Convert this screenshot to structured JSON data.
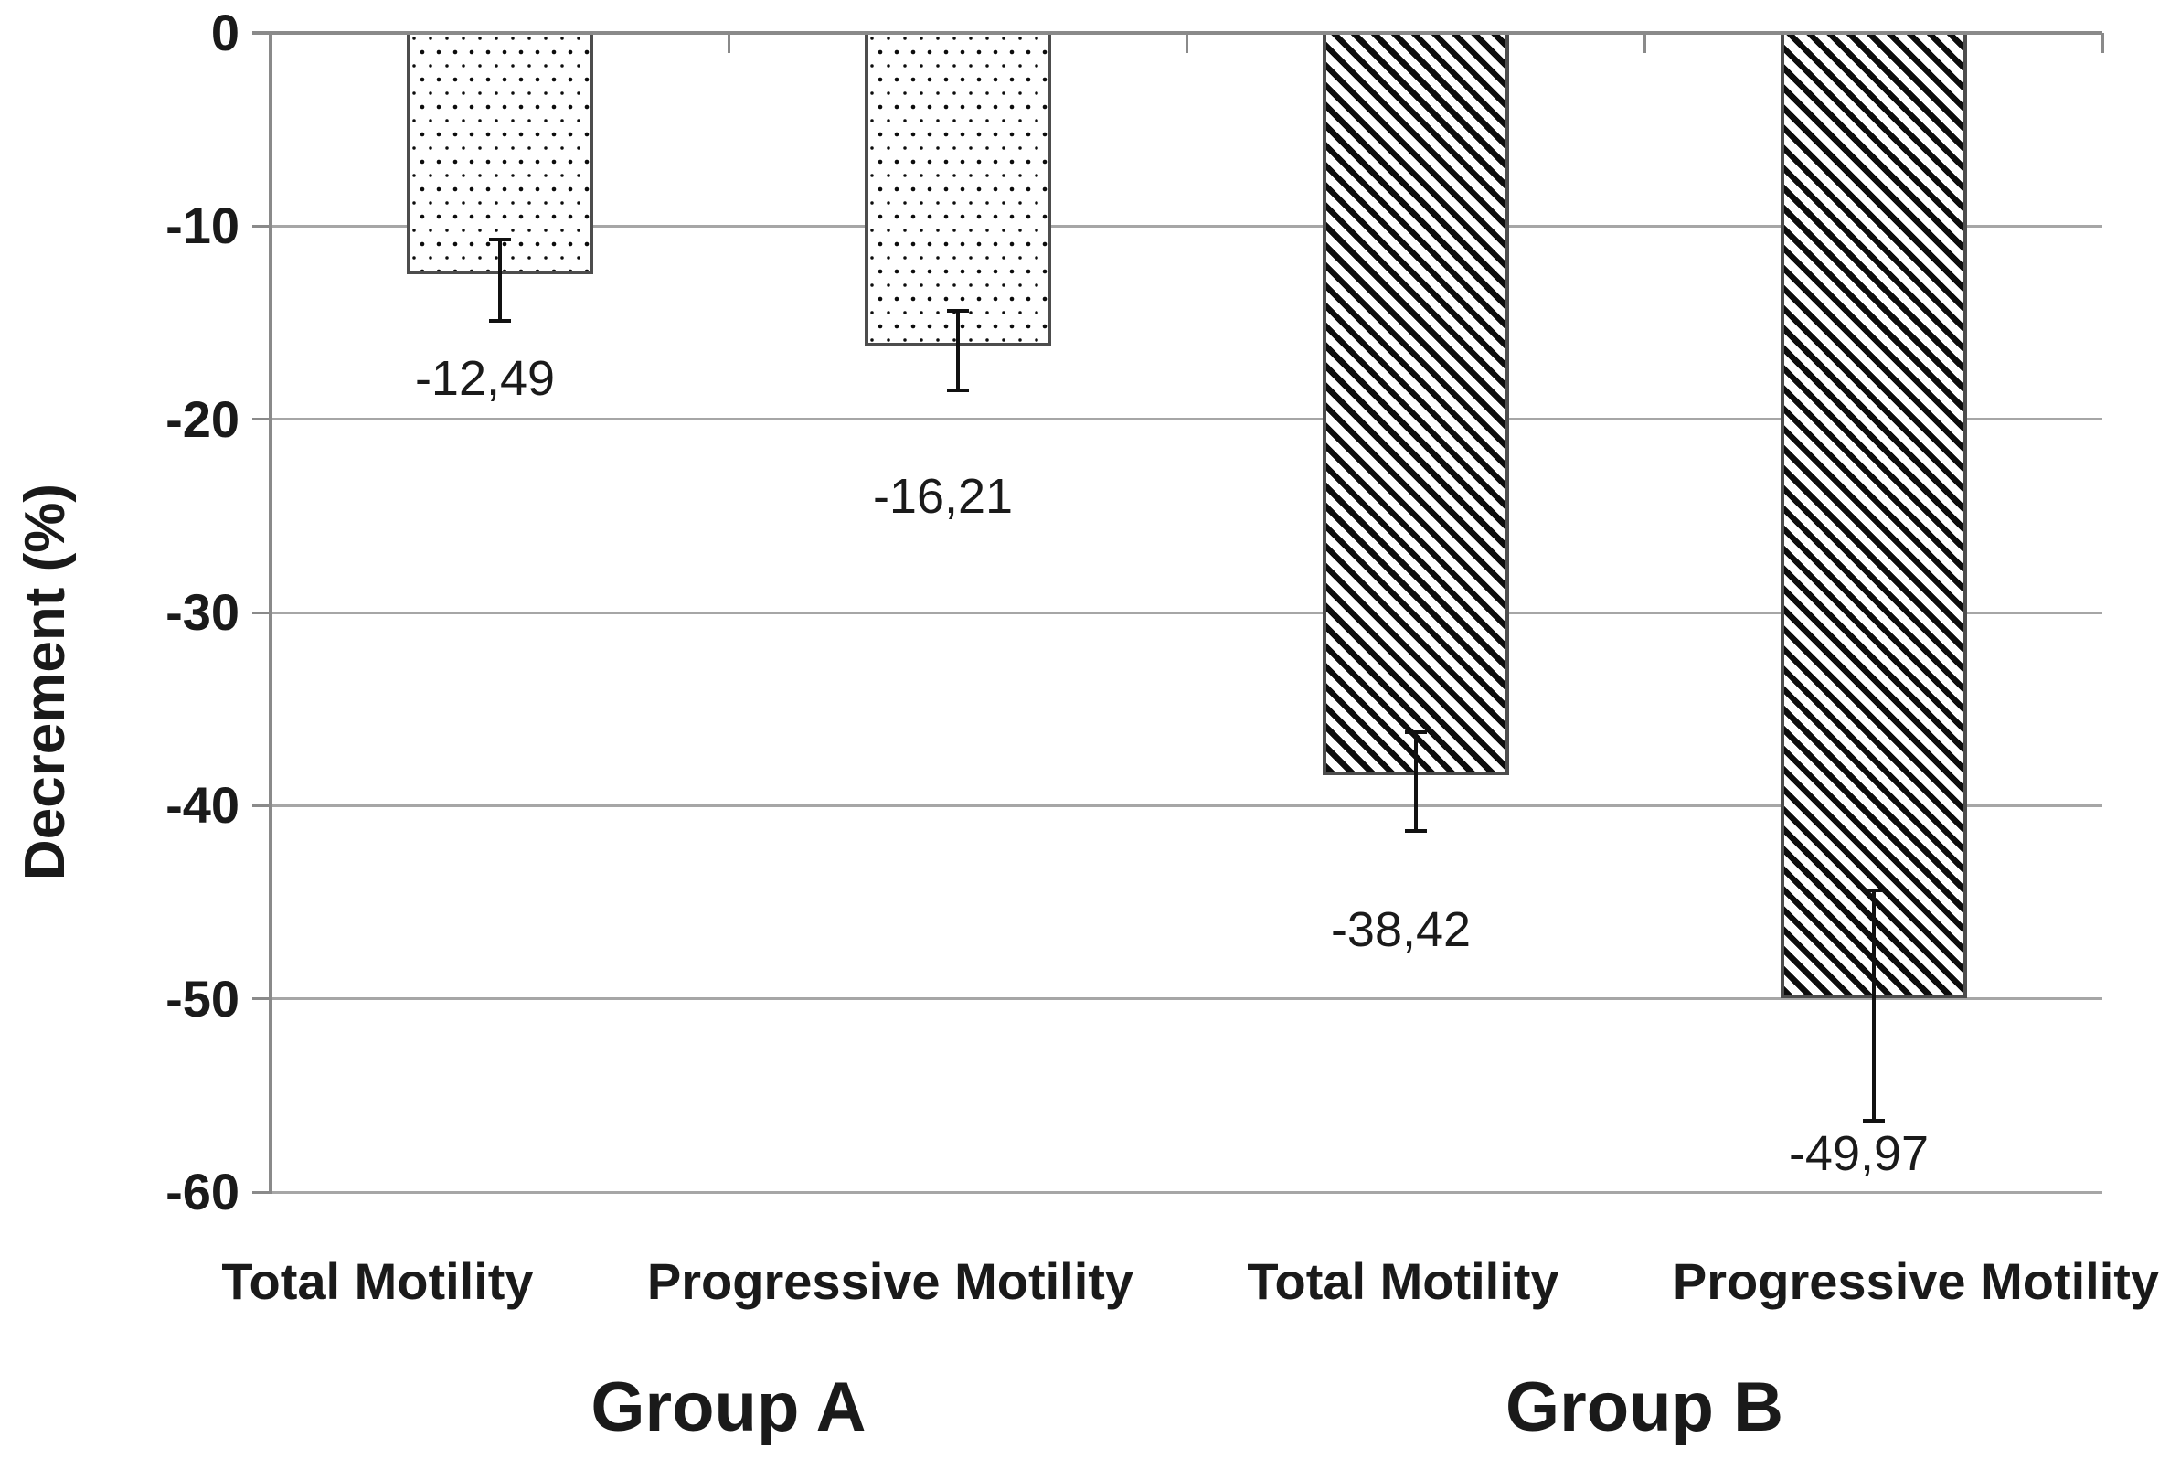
{
  "colors": {
    "bg": "#ffffff",
    "gridline": "#a6a6a6",
    "axis": "#8a8a8a",
    "barborder": "#4d4d4d",
    "barfill": "#ffffff",
    "ink": "#0d0d0d",
    "err": "#111111",
    "text": "#1a1a1a"
  },
  "chart_data": {
    "type": "bar",
    "orientation": "vertical",
    "title": "",
    "xlabel": "",
    "ylabel": "Decrement (%)",
    "ylim": [
      -60,
      0
    ],
    "grid": true,
    "legend": "none",
    "y_ticks": [
      0,
      -10,
      -20,
      -30,
      -40,
      -50,
      -60
    ],
    "y_tick_labels": [
      "0",
      "-10",
      "-20",
      "-30",
      "-40",
      "-50",
      "-60"
    ],
    "decimal_separator": ",",
    "group_labels": [
      "Group A",
      "Group B"
    ],
    "categories": [
      "Total Motility",
      "Progressive Motility",
      "Total Motility",
      "Progressive Motility"
    ],
    "bars": [
      {
        "group": "Group A",
        "category": "Total Motility",
        "value": -12.49,
        "label": "-12,49",
        "pattern": "dots",
        "error_top": -10.7,
        "error_bottom": -14.9,
        "label_y": -17.9
      },
      {
        "group": "Group A",
        "category": "Progressive Motility",
        "value": -16.21,
        "label": "-16,21",
        "pattern": "dots",
        "error_top": -14.4,
        "error_bottom": -18.5,
        "label_y": -24.0
      },
      {
        "group": "Group B",
        "category": "Total Motility",
        "value": -38.42,
        "label": "-38,42",
        "pattern": "diagonal-hatch",
        "error_top": -36.2,
        "error_bottom": -41.3,
        "label_y": -46.4
      },
      {
        "group": "Group B",
        "category": "Progressive Motility",
        "value": -49.97,
        "label": "-49,97",
        "pattern": "diagonal-hatch",
        "error_top": -44.4,
        "error_bottom": -56.3,
        "label_y": -58.0
      }
    ]
  }
}
